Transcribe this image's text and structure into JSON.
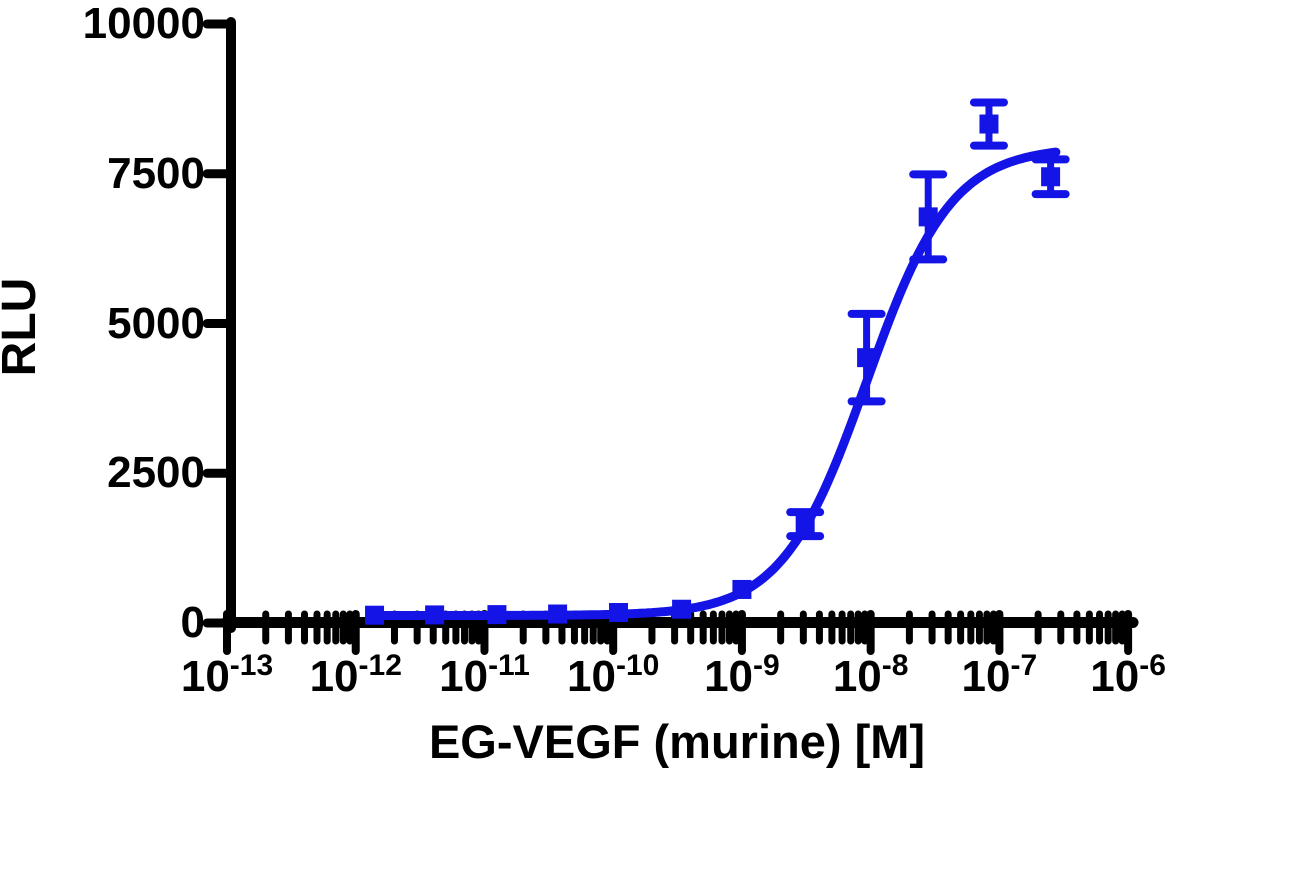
{
  "chart_data": {
    "type": "scatter",
    "title": "",
    "xlabel": "EG-VEGF (murine) [M]",
    "ylabel": "RLU",
    "x_scale": "log",
    "xlim": [
      "1e-13",
      "1e-6"
    ],
    "ylim": [
      0,
      10000
    ],
    "grid": false,
    "legend": "none",
    "marker": "square",
    "accent_color": "#1414E6",
    "axis_color": "#000000",
    "x_ticks": [
      {
        "base": "10",
        "exp": "-13"
      },
      {
        "base": "10",
        "exp": "-12"
      },
      {
        "base": "10",
        "exp": "-11"
      },
      {
        "base": "10",
        "exp": "-10"
      },
      {
        "base": "10",
        "exp": "-9"
      },
      {
        "base": "10",
        "exp": "-8"
      },
      {
        "base": "10",
        "exp": "-7"
      },
      {
        "base": "10",
        "exp": "-6"
      }
    ],
    "y_ticks": [
      {
        "value": 0,
        "label": "0"
      },
      {
        "value": 2500,
        "label": "2500"
      },
      {
        "value": 5000,
        "label": "5000"
      },
      {
        "value": 7500,
        "label": "7500"
      },
      {
        "value": 10000,
        "label": "10000"
      }
    ],
    "series": [
      {
        "name": "EG-VEGF (murine)",
        "points": [
          {
            "conc_m": 1.4e-12,
            "rlu": 130,
            "err": null
          },
          {
            "conc_m": 4.1e-12,
            "rlu": 135,
            "err": null
          },
          {
            "conc_m": 1.25e-11,
            "rlu": 140,
            "err": null
          },
          {
            "conc_m": 3.7e-11,
            "rlu": 150,
            "err": null
          },
          {
            "conc_m": 1.1e-10,
            "rlu": 175,
            "err": null
          },
          {
            "conc_m": 3.4e-10,
            "rlu": 230,
            "err": null
          },
          {
            "conc_m": 1e-09,
            "rlu": 560,
            "err": null
          },
          {
            "conc_m": 3.1e-09,
            "rlu": 1650,
            "err": 200
          },
          {
            "conc_m": 9.3e-09,
            "rlu": 4430,
            "err": 730
          },
          {
            "conc_m": 2.8e-08,
            "rlu": 6780,
            "err": 710
          },
          {
            "conc_m": 8.3e-08,
            "rlu": 8330,
            "err": 360
          },
          {
            "conc_m": 2.5e-07,
            "rlu": 7450,
            "err": 290
          }
        ]
      }
    ],
    "fit_curve": {
      "model": "4PL",
      "bottom": 125,
      "top": 7950,
      "log_ec50": -8.03,
      "hill": 1.32,
      "x_start": 1.36e-12,
      "x_end": 2.75e-07
    }
  }
}
